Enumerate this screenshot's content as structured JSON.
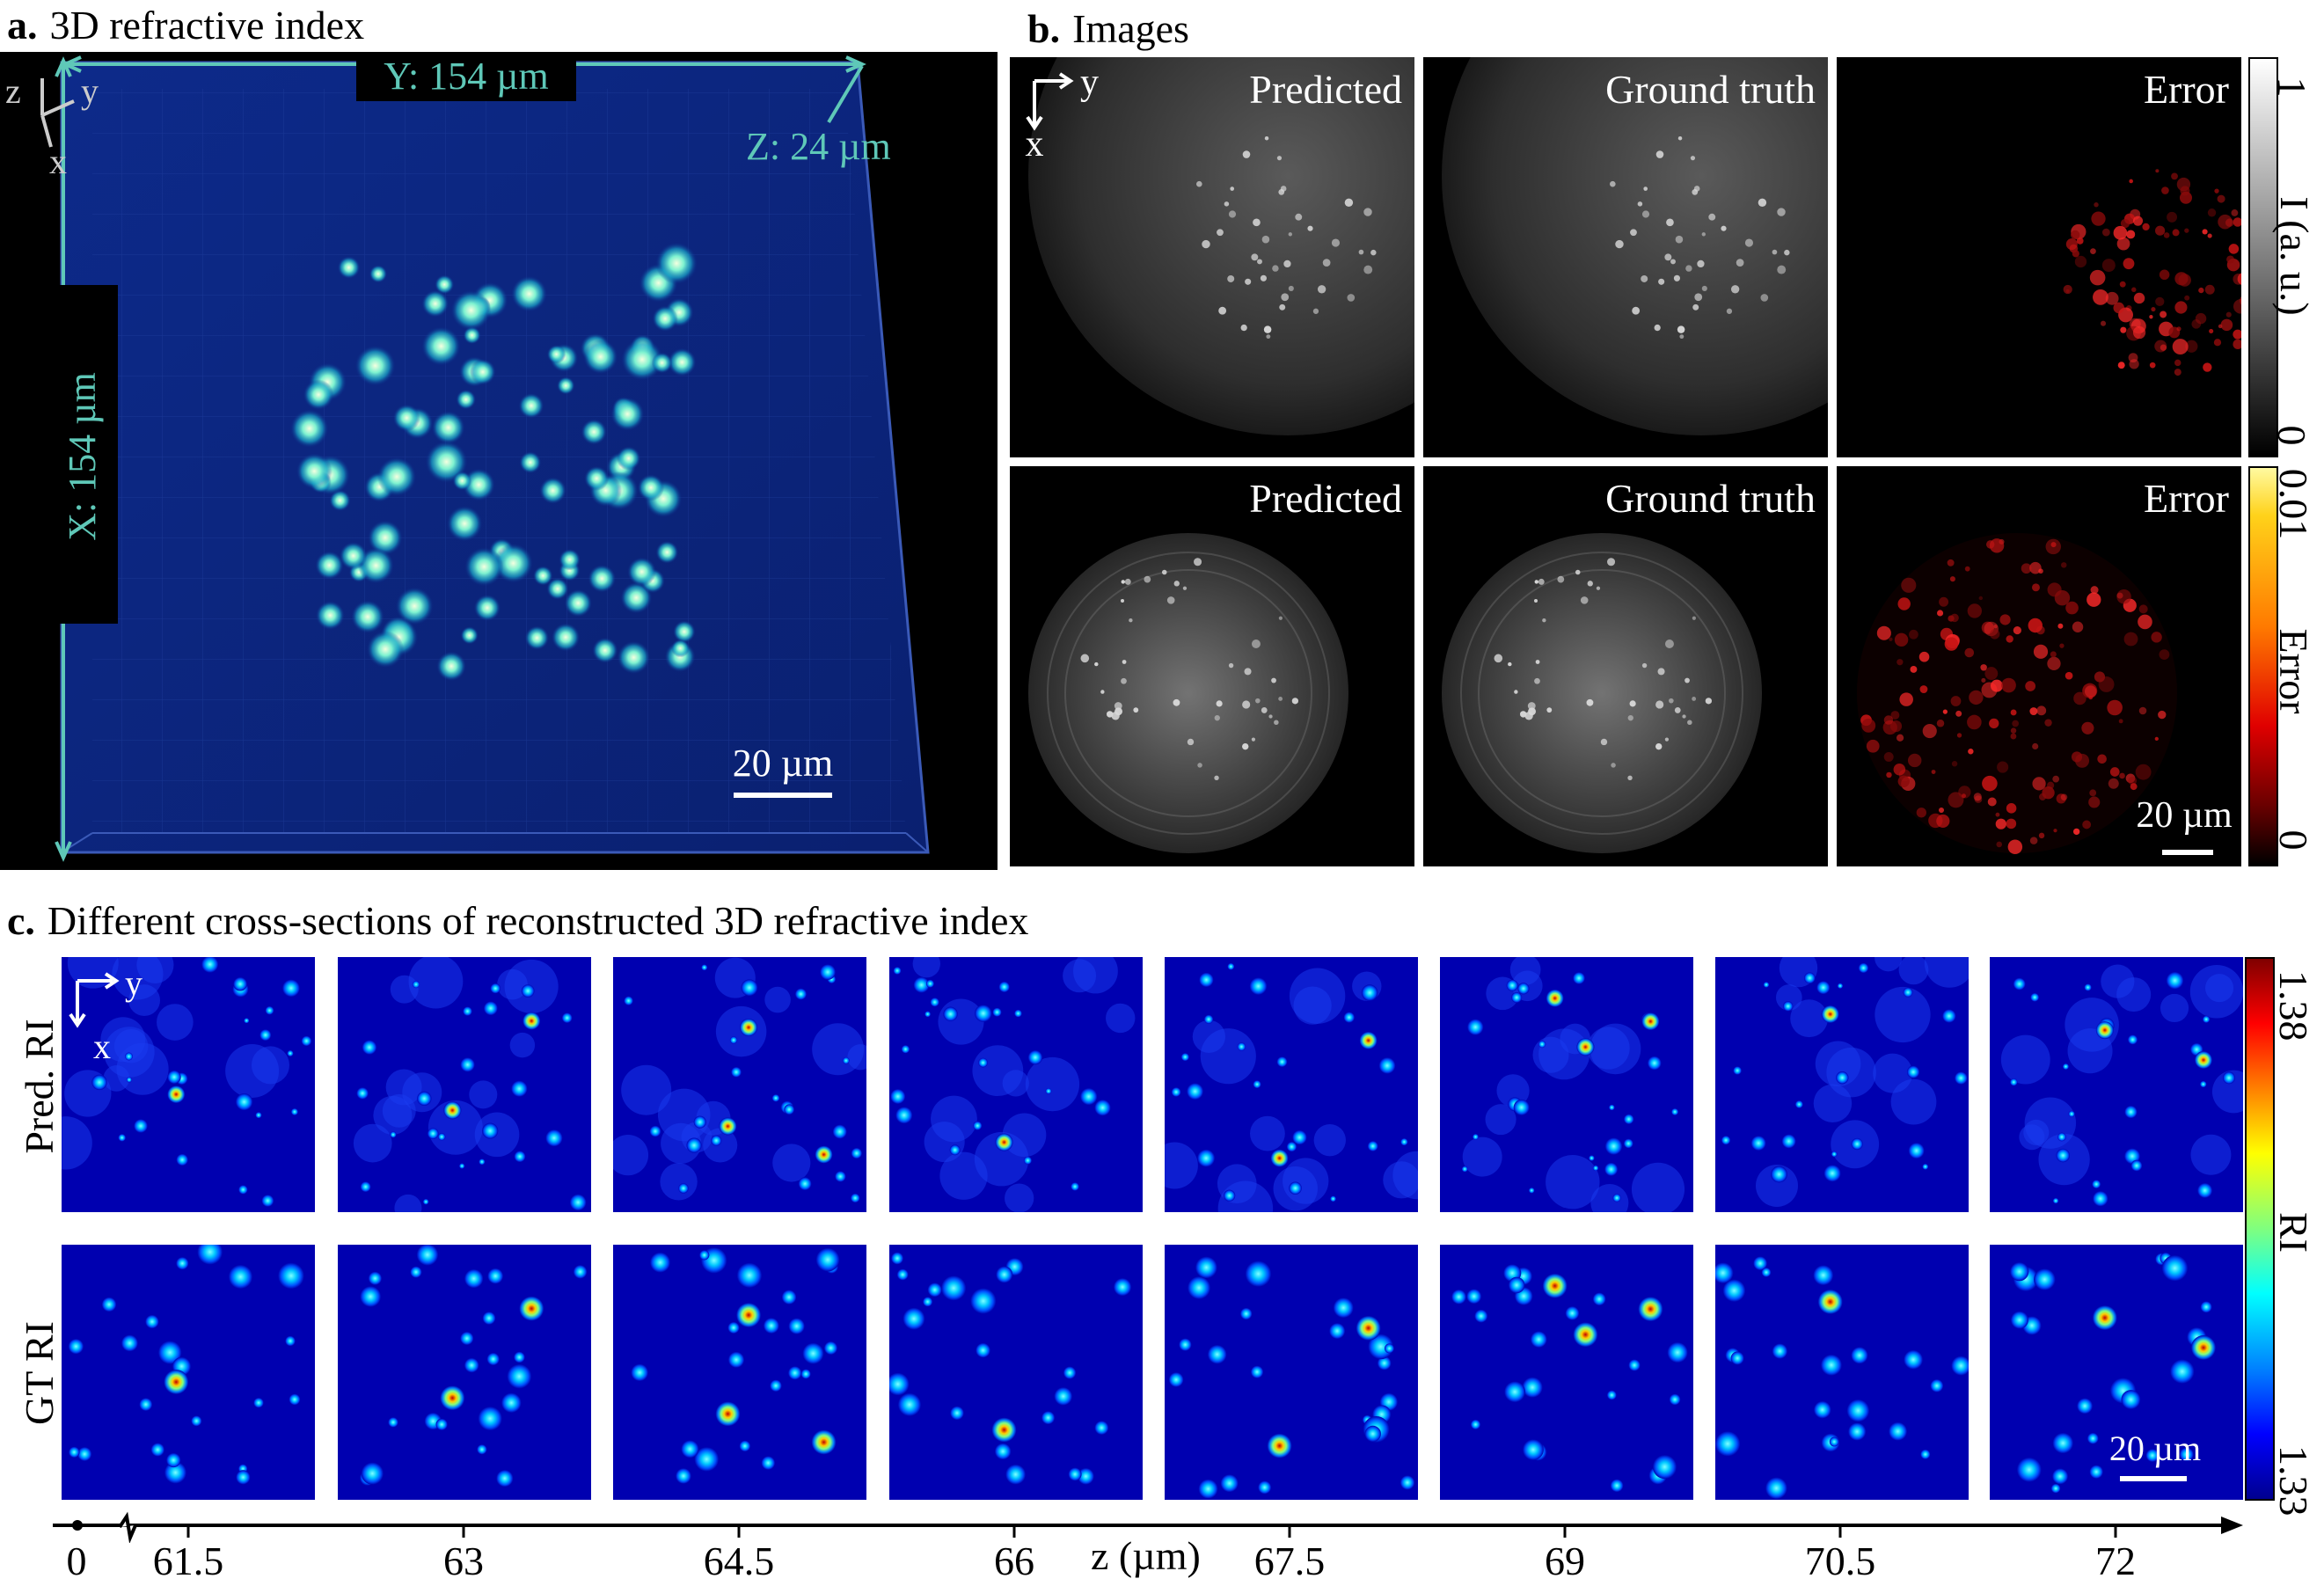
{
  "panel_a": {
    "letter": "a.",
    "title": "3D refractive index",
    "y_dim": "Y: 154 µm",
    "z_dim": "Z: 24 µm",
    "x_dim": "X: 154 µm",
    "axes": {
      "z": "z",
      "y": "y",
      "x": "x"
    },
    "scale_bar": "20 µm"
  },
  "panel_b": {
    "letter": "b.",
    "title": "Images",
    "axis_y": "y",
    "axis_x": "x",
    "rows": [
      [
        "Predicted",
        "Ground truth",
        "Error"
      ],
      [
        "Predicted",
        "Ground truth",
        "Error"
      ]
    ],
    "colorbar_gray": {
      "max": "1",
      "label": "I (a. u.)",
      "min": "0"
    },
    "colorbar_error": {
      "max": "0.01",
      "label": "Error",
      "min": "0"
    },
    "scale_bar": "20 µm"
  },
  "panel_c": {
    "letter": "c.",
    "title": "Different cross-sections of reconstructed 3D refractive index",
    "row_labels": [
      "Pred. RI",
      "GT RI"
    ],
    "axis_y": "y",
    "axis_x": "x",
    "colorbar": {
      "max": "1.38",
      "label": "RI",
      "min": "1.33"
    },
    "scale_bar": "20 µm",
    "z_axis": {
      "origin": "0",
      "ticks": [
        "61.5",
        "63",
        "64.5",
        "66",
        "67.5",
        "69",
        "70.5",
        "72"
      ],
      "label": "z (µm)"
    }
  }
}
